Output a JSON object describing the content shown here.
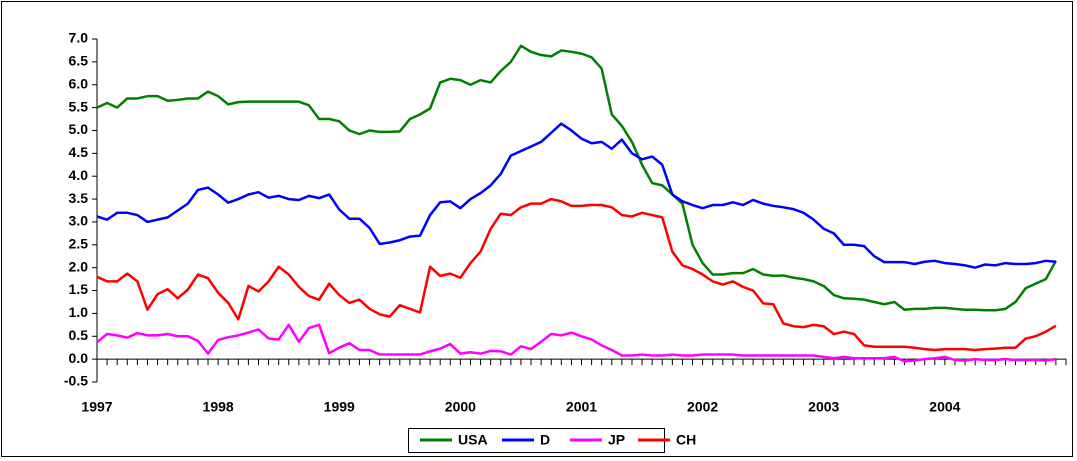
{
  "chart_data": {
    "type": "line",
    "categories": [
      "1997",
      null,
      null,
      null,
      null,
      null,
      null,
      null,
      null,
      null,
      null,
      null,
      "1998",
      null,
      null,
      null,
      null,
      null,
      null,
      null,
      null,
      null,
      null,
      null,
      "1999",
      null,
      null,
      null,
      null,
      null,
      null,
      null,
      null,
      null,
      null,
      null,
      "2000",
      null,
      null,
      null,
      null,
      null,
      null,
      null,
      null,
      null,
      null,
      null,
      "2001",
      null,
      null,
      null,
      null,
      null,
      null,
      null,
      null,
      null,
      null,
      null,
      "2002",
      null,
      null,
      null,
      null,
      null,
      null,
      null,
      null,
      null,
      null,
      null,
      "2003",
      null,
      null,
      null,
      null,
      null,
      null,
      null,
      null,
      null,
      null,
      null,
      "2004",
      null,
      null,
      null,
      null,
      null,
      null,
      null,
      null,
      null,
      null,
      null
    ],
    "series": [
      {
        "name": "USA",
        "color": "#008000",
        "values": [
          5.5,
          5.6,
          5.5,
          5.7,
          5.7,
          5.75,
          5.75,
          5.65,
          5.67,
          5.7,
          5.7,
          5.85,
          5.75,
          5.57,
          5.62,
          5.63,
          5.63,
          5.63,
          5.63,
          5.63,
          5.63,
          5.55,
          5.25,
          5.25,
          5.2,
          5.0,
          4.92,
          5.0,
          4.97,
          4.97,
          4.98,
          5.25,
          5.35,
          5.48,
          6.05,
          6.13,
          6.1,
          6.0,
          6.1,
          6.05,
          6.3,
          6.5,
          6.85,
          6.72,
          6.65,
          6.62,
          6.75,
          6.72,
          6.68,
          6.6,
          6.35,
          5.35,
          5.1,
          4.75,
          4.25,
          3.85,
          3.8,
          3.6,
          3.4,
          2.5,
          2.1,
          1.85,
          1.85,
          1.88,
          1.88,
          1.97,
          1.85,
          1.82,
          1.83,
          1.78,
          1.75,
          1.7,
          1.6,
          1.4,
          1.33,
          1.32,
          1.3,
          1.25,
          1.2,
          1.25,
          1.08,
          1.1,
          1.1,
          1.12,
          1.12,
          1.1,
          1.08,
          1.08,
          1.07,
          1.07,
          1.1,
          1.25,
          1.55,
          1.65,
          1.75,
          2.15
        ]
      },
      {
        "name": "D",
        "color": "#0000ff",
        "values": [
          3.12,
          3.05,
          3.2,
          3.2,
          3.15,
          3.0,
          3.05,
          3.1,
          3.25,
          3.4,
          3.7,
          3.75,
          3.6,
          3.42,
          3.5,
          3.6,
          3.65,
          3.53,
          3.57,
          3.5,
          3.48,
          3.57,
          3.52,
          3.6,
          3.27,
          3.07,
          3.07,
          2.87,
          2.52,
          2.55,
          2.6,
          2.68,
          2.7,
          3.15,
          3.43,
          3.45,
          3.3,
          3.5,
          3.63,
          3.8,
          4.05,
          4.45,
          4.55,
          4.65,
          4.75,
          4.95,
          5.15,
          5.0,
          4.82,
          4.72,
          4.75,
          4.6,
          4.8,
          4.5,
          4.37,
          4.43,
          4.25,
          3.6,
          3.45,
          3.37,
          3.3,
          3.37,
          3.37,
          3.43,
          3.37,
          3.48,
          3.4,
          3.35,
          3.32,
          3.28,
          3.2,
          3.05,
          2.85,
          2.75,
          2.5,
          2.5,
          2.47,
          2.25,
          2.12,
          2.12,
          2.12,
          2.08,
          2.13,
          2.15,
          2.1,
          2.08,
          2.05,
          2.0,
          2.07,
          2.05,
          2.1,
          2.08,
          2.08,
          2.1,
          2.15,
          2.13
        ]
      },
      {
        "name": "JP",
        "color": "#ff00ff",
        "values": [
          0.37,
          0.55,
          0.52,
          0.47,
          0.57,
          0.52,
          0.52,
          0.55,
          0.5,
          0.5,
          0.4,
          0.12,
          0.42,
          0.48,
          0.52,
          0.58,
          0.65,
          0.45,
          0.43,
          0.75,
          0.38,
          0.68,
          0.75,
          0.13,
          0.25,
          0.35,
          0.2,
          0.2,
          0.1,
          0.1,
          0.1,
          0.1,
          0.1,
          0.17,
          0.23,
          0.33,
          0.12,
          0.15,
          0.12,
          0.18,
          0.17,
          0.1,
          0.28,
          0.22,
          0.38,
          0.55,
          0.52,
          0.58,
          0.5,
          0.43,
          0.3,
          0.2,
          0.08,
          0.08,
          0.1,
          0.08,
          0.08,
          0.1,
          0.08,
          0.08,
          0.1,
          0.1,
          0.1,
          0.1,
          0.08,
          0.08,
          0.08,
          0.08,
          0.08,
          0.08,
          0.08,
          0.08,
          0.05,
          0.02,
          0.05,
          0.02,
          0.02,
          0.02,
          0.02,
          0.05,
          -0.05,
          -0.03,
          0.0,
          0.02,
          0.05,
          -0.02,
          -0.03,
          0.0,
          -0.02,
          -0.02,
          0.0,
          -0.02,
          -0.02,
          -0.02,
          -0.03,
          0.0
        ]
      },
      {
        "name": "CH",
        "color": "#ff0000",
        "values": [
          1.8,
          1.7,
          1.7,
          1.87,
          1.7,
          1.08,
          1.42,
          1.53,
          1.33,
          1.52,
          1.85,
          1.77,
          1.45,
          1.23,
          0.87,
          1.6,
          1.48,
          1.7,
          2.02,
          1.85,
          1.58,
          1.38,
          1.3,
          1.65,
          1.4,
          1.23,
          1.3,
          1.1,
          0.98,
          0.93,
          1.18,
          1.1,
          1.02,
          2.02,
          1.82,
          1.87,
          1.78,
          2.1,
          2.35,
          2.85,
          3.18,
          3.15,
          3.32,
          3.4,
          3.4,
          3.5,
          3.45,
          3.35,
          3.35,
          3.37,
          3.37,
          3.32,
          3.15,
          3.12,
          3.2,
          3.15,
          3.1,
          2.35,
          2.05,
          1.97,
          1.85,
          1.7,
          1.63,
          1.7,
          1.58,
          1.5,
          1.22,
          1.2,
          0.78,
          0.72,
          0.7,
          0.75,
          0.72,
          0.55,
          0.6,
          0.55,
          0.3,
          0.27,
          0.27,
          0.27,
          0.27,
          0.25,
          0.22,
          0.2,
          0.22,
          0.22,
          0.22,
          0.2,
          0.22,
          0.23,
          0.25,
          0.25,
          0.45,
          0.5,
          0.6,
          0.73
        ]
      }
    ],
    "ylim": [
      -0.5,
      7.0
    ],
    "yticks": [
      {
        "value": -0.5,
        "label": "-0.5"
      },
      {
        "value": 0,
        "label": "0.0"
      },
      0.5,
      {
        "value": 1,
        "label": "1.0"
      },
      1.5,
      {
        "value": 2,
        "label": "2.0"
      },
      2.5,
      {
        "value": 3,
        "label": "3.0"
      },
      3.5,
      {
        "value": 4,
        "label": "4.0"
      },
      4.5,
      {
        "value": 5,
        "label": "5.0"
      },
      5.5,
      {
        "value": 6,
        "label": "6.0"
      },
      6.5,
      {
        "value": 7,
        "label": "7.0"
      }
    ],
    "grid": false,
    "legend": "bottom"
  }
}
